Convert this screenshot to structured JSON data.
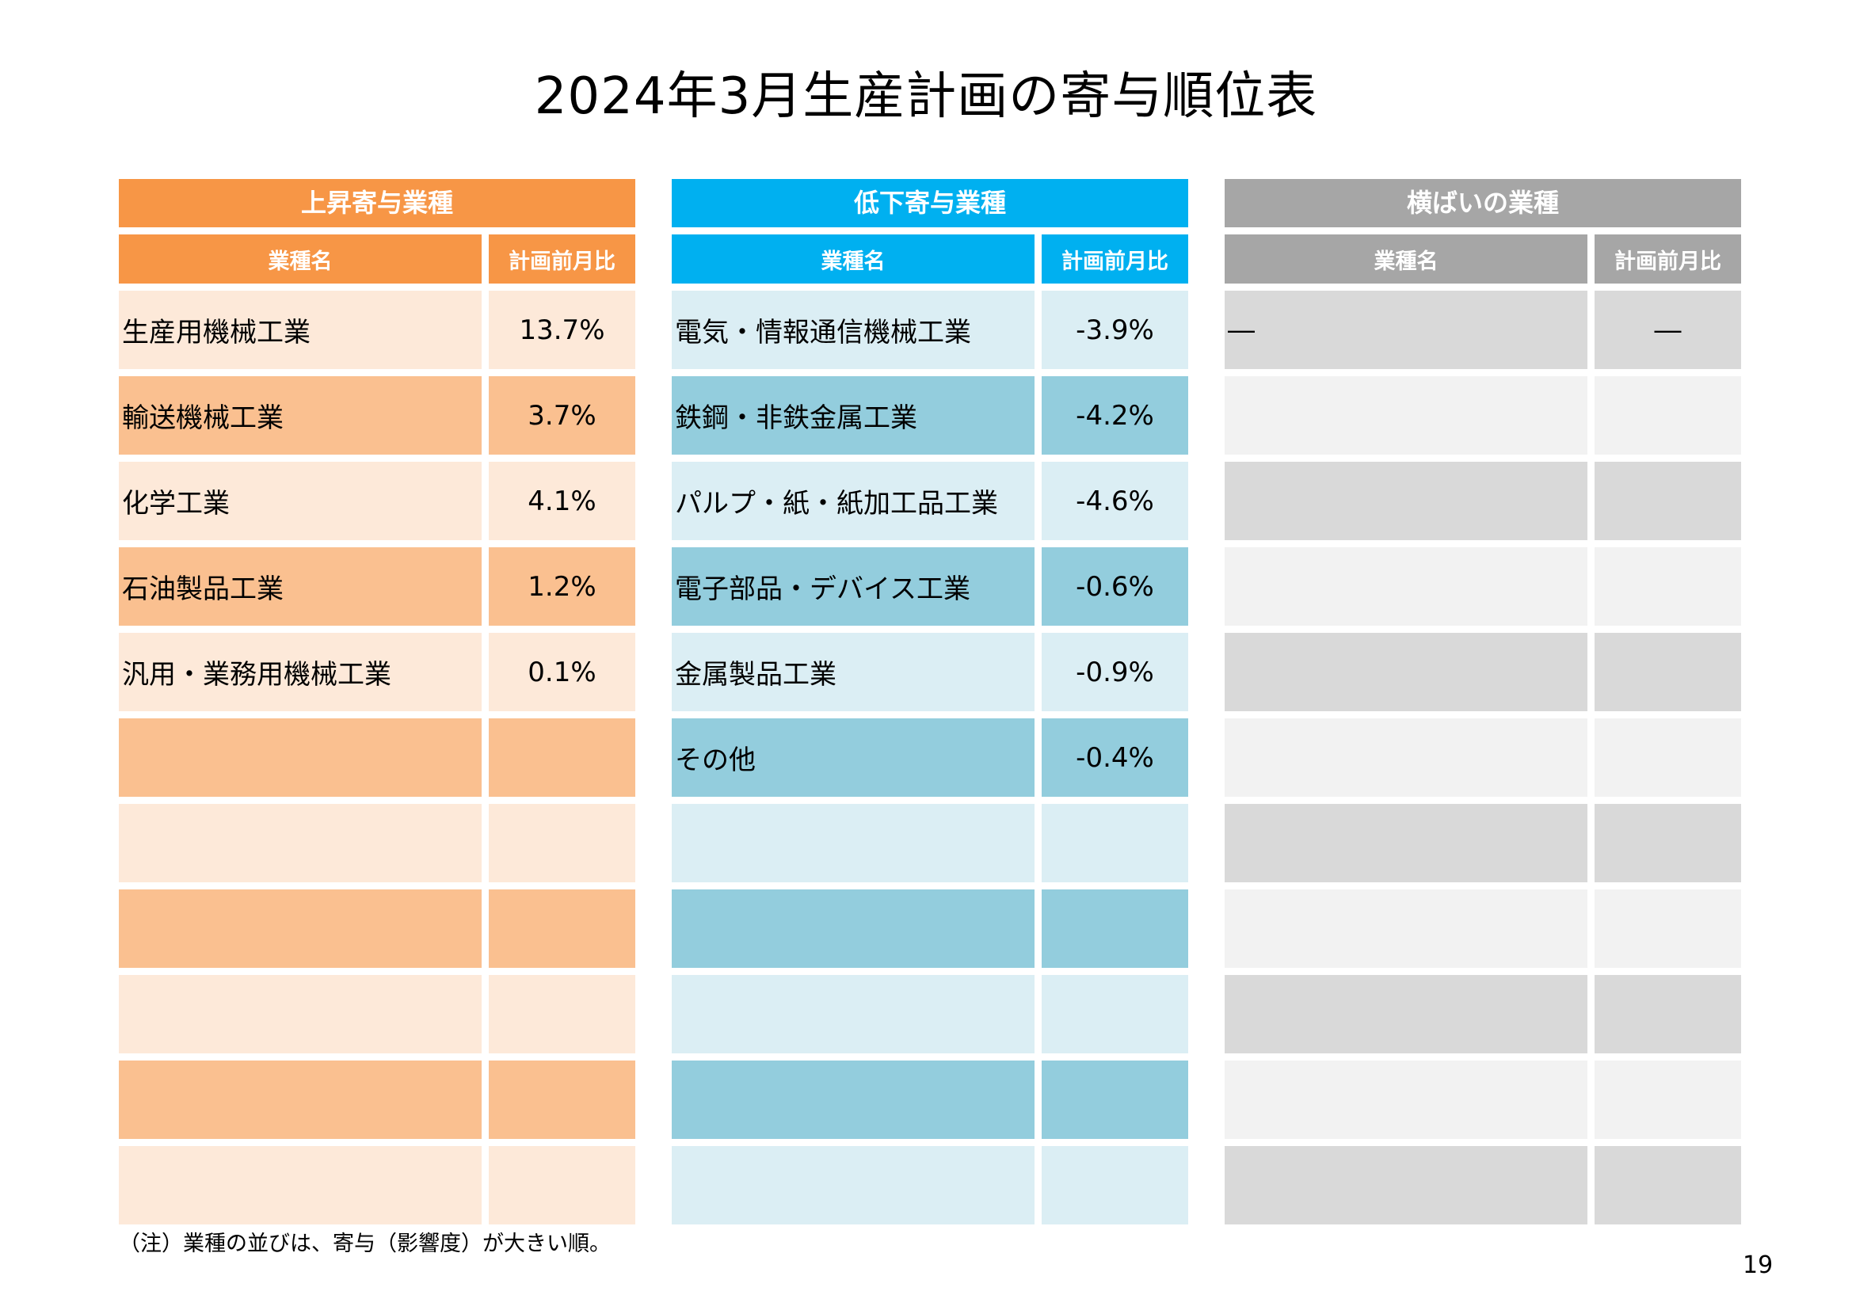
{
  "title": "2024年3月生産計画の寄与順位表",
  "panels": [
    {
      "id": "rising",
      "header": "上昇寄与業種",
      "col_name": "業種名",
      "col_value": "計画前月比",
      "rows": [
        {
          "name": "生産用機械工業",
          "value": "13.7%"
        },
        {
          "name": "輸送機械工業",
          "value": "3.7%"
        },
        {
          "name": "化学工業",
          "value": "4.1%"
        },
        {
          "name": "石油製品工業",
          "value": "1.2%"
        },
        {
          "name": "汎用・業務用機械工業",
          "value": "0.1%"
        },
        {
          "name": "",
          "value": ""
        },
        {
          "name": "",
          "value": ""
        },
        {
          "name": "",
          "value": ""
        },
        {
          "name": "",
          "value": ""
        },
        {
          "name": "",
          "value": ""
        },
        {
          "name": "",
          "value": ""
        }
      ]
    },
    {
      "id": "falling",
      "header": "低下寄与業種",
      "col_name": "業種名",
      "col_value": "計画前月比",
      "rows": [
        {
          "name": "電気・情報通信機械工業",
          "value": "-3.9%"
        },
        {
          "name": "鉄鋼・非鉄金属工業",
          "value": "-4.2%"
        },
        {
          "name": "パルプ・紙・紙加工品工業",
          "value": "-4.6%"
        },
        {
          "name": "電子部品・デバイス工業",
          "value": "-0.6%"
        },
        {
          "name": "金属製品工業",
          "value": "-0.9%"
        },
        {
          "name": "その他",
          "value": "-0.4%"
        },
        {
          "name": "",
          "value": ""
        },
        {
          "name": "",
          "value": ""
        },
        {
          "name": "",
          "value": ""
        },
        {
          "name": "",
          "value": ""
        },
        {
          "name": "",
          "value": ""
        }
      ]
    },
    {
      "id": "flat",
      "header": "横ばいの業種",
      "col_name": "業種名",
      "col_value": "計画前月比",
      "rows": [
        {
          "name": "―",
          "value": "―"
        },
        {
          "name": "",
          "value": ""
        },
        {
          "name": "",
          "value": ""
        },
        {
          "name": "",
          "value": ""
        },
        {
          "name": "",
          "value": ""
        },
        {
          "name": "",
          "value": ""
        },
        {
          "name": "",
          "value": ""
        },
        {
          "name": "",
          "value": ""
        },
        {
          "name": "",
          "value": ""
        },
        {
          "name": "",
          "value": ""
        },
        {
          "name": "",
          "value": ""
        }
      ]
    }
  ],
  "note": "（注）業種の並びは、寄与（影響度）が大きい順。",
  "page_number": "19",
  "colors": {
    "orange_header": "#f79646",
    "orange_light": "#fde9d9",
    "orange_mid": "#fac090",
    "blue_header": "#00b0f0",
    "blue_light": "#dbeef4",
    "blue_mid": "#93cddd",
    "gray_header": "#a6a6a6",
    "gray_dark": "#d9d9d9",
    "gray_light": "#f2f2f2"
  }
}
